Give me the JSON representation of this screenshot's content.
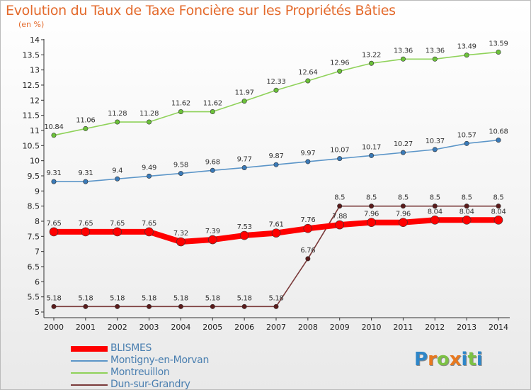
{
  "chart_data": {
    "type": "line",
    "title": "Evolution du Taux de Taxe Foncière sur les Propriétés Bâties",
    "subtitle": "(en %)",
    "x": [
      "2000",
      "2001",
      "2002",
      "2003",
      "2004",
      "2005",
      "2006",
      "2007",
      "2008",
      "2009",
      "2010",
      "2011",
      "2012",
      "2013",
      "2014"
    ],
    "ylim": [
      5,
      14
    ],
    "yticks": [
      "5",
      "5.5",
      "6",
      "6.5",
      "7",
      "7.5",
      "8",
      "8.5",
      "9",
      "9.5",
      "10",
      "10.5",
      "11",
      "11.5",
      "12",
      "12.5",
      "13",
      "13.5",
      "14"
    ],
    "series": [
      {
        "name": "Dun-sur-Grandry",
        "color": "#7a3a3a",
        "values": [
          5.18,
          5.18,
          5.18,
          5.18,
          5.18,
          5.18,
          5.18,
          5.18,
          6.76,
          8.5,
          8.5,
          8.5,
          8.5,
          8.5,
          8.5
        ],
        "labels": [
          "5.18",
          "5.18",
          "5.18",
          "5.18",
          "5.18",
          "5.18",
          "5.18",
          "5.18",
          "6.76",
          "8.5",
          "8.5",
          "8.5",
          "8.5",
          "8.5",
          "8.5"
        ]
      },
      {
        "name": "Montigny-en-Morvan",
        "color": "#5b95c8",
        "values": [
          9.31,
          9.31,
          9.4,
          9.49,
          9.58,
          9.68,
          9.77,
          9.87,
          9.97,
          10.07,
          10.17,
          10.27,
          10.37,
          10.57,
          10.68
        ],
        "labels": [
          "9.31",
          "9.31",
          "9.4",
          "9.49",
          "9.58",
          "9.68",
          "9.77",
          "9.87",
          "9.97",
          "10.07",
          "10.17",
          "10.27",
          "10.37",
          "10.57",
          "10.68"
        ]
      },
      {
        "name": "Montreuillon",
        "color": "#8fd25a",
        "values": [
          10.84,
          11.06,
          11.28,
          11.28,
          11.62,
          11.62,
          11.97,
          12.33,
          12.64,
          12.96,
          13.22,
          13.36,
          13.36,
          13.49,
          13.59
        ],
        "labels": [
          "10.84",
          "11.06",
          "11.28",
          "11.28",
          "11.62",
          "11.62",
          "11.97",
          "12.33",
          "12.64",
          "12.96",
          "13.22",
          "13.36",
          "13.36",
          "13.49",
          "13.59"
        ]
      },
      {
        "name": "BLISMES",
        "color": "#ff0000",
        "values": [
          7.65,
          7.65,
          7.65,
          7.65,
          7.32,
          7.39,
          7.53,
          7.61,
          7.76,
          7.88,
          7.96,
          7.96,
          8.04,
          8.04,
          8.04
        ],
        "labels": [
          "7.65",
          "7.65",
          "7.65",
          "7.65",
          "7.32",
          "7.39",
          "7.53",
          "7.61",
          "7.76",
          "7.88",
          "7.96",
          "7.96",
          "8.04",
          "8.04",
          "8.04"
        ]
      }
    ],
    "legend": [
      "BLISMES",
      "Montigny-en-Morvan",
      "Montreuillon",
      "Dun-sur-Grandry"
    ],
    "legend_position": "bottom-left",
    "grid": false
  },
  "logo": {
    "text": "Proxiti",
    "letters": [
      "P",
      "r",
      "o",
      "x",
      "i",
      "t",
      "i"
    ],
    "colors": [
      "#2e86c8",
      "#e8781e",
      "#7cc144",
      "#e8781e",
      "#2e86c8",
      "#7cc144",
      "#2e86c8"
    ]
  }
}
